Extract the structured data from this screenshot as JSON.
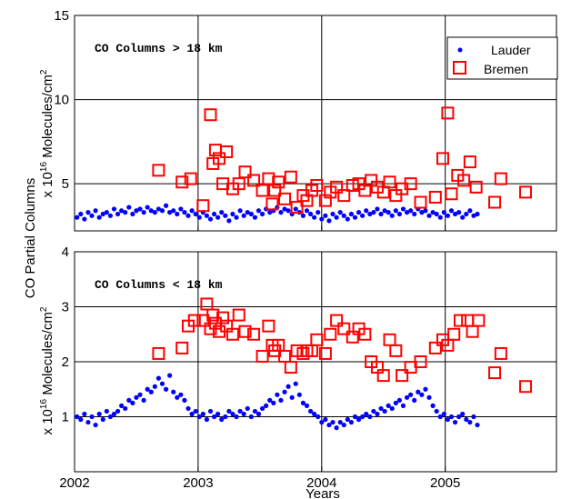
{
  "chart_data": {
    "type": "scatter",
    "xlabel": "Years",
    "ylabel_main": "CO Partial Columns",
    "ylabel_units_prefix": "x 10",
    "ylabel_units_exp": "16",
    "ylabel_units_suffix": " Molecules/cm",
    "ylabel_units_sup2": "2",
    "xlim": [
      2002.0,
      2005.9
    ],
    "xticks": [
      2002,
      2003,
      2004,
      2005
    ],
    "xtick_labels": [
      "2002",
      "2003",
      "2004",
      "2005"
    ],
    "legend": {
      "placement": "top-right",
      "entries": [
        "Lauder",
        "Bremen"
      ]
    },
    "colors": {
      "lauder": "#0000ff",
      "bremen": "#ff0000"
    },
    "grid": true,
    "panels": [
      {
        "annotation": "CO Columns > 18 km",
        "ylim": [
          2.2,
          15
        ],
        "yticks": [
          5,
          10,
          15
        ],
        "ytick_labels": [
          "5",
          "10",
          "15"
        ],
        "series": [
          {
            "name": "Lauder",
            "marker": "dot",
            "x": [
              2002.02,
              2002.05,
              2002.08,
              2002.11,
              2002.14,
              2002.17,
              2002.2,
              2002.23,
              2002.26,
              2002.29,
              2002.32,
              2002.35,
              2002.38,
              2002.41,
              2002.44,
              2002.47,
              2002.5,
              2002.53,
              2002.56,
              2002.59,
              2002.62,
              2002.65,
              2002.68,
              2002.71,
              2002.74,
              2002.77,
              2002.8,
              2002.83,
              2002.86,
              2002.89,
              2002.92,
              2002.95,
              2002.98,
              2003.01,
              2003.04,
              2003.07,
              2003.1,
              2003.13,
              2003.16,
              2003.19,
              2003.22,
              2003.25,
              2003.28,
              2003.31,
              2003.34,
              2003.37,
              2003.4,
              2003.43,
              2003.46,
              2003.49,
              2003.52,
              2003.55,
              2003.58,
              2003.61,
              2003.64,
              2003.67,
              2003.7,
              2003.73,
              2003.76,
              2003.79,
              2003.82,
              2003.85,
              2003.88,
              2003.91,
              2003.94,
              2003.97,
              2004.0,
              2004.03,
              2004.06,
              2004.09,
              2004.12,
              2004.15,
              2004.18,
              2004.21,
              2004.24,
              2004.27,
              2004.3,
              2004.33,
              2004.36,
              2004.39,
              2004.42,
              2004.45,
              2004.48,
              2004.51,
              2004.54,
              2004.57,
              2004.6,
              2004.63,
              2004.66,
              2004.69,
              2004.72,
              2004.75,
              2004.78,
              2004.81,
              2004.84,
              2004.87,
              2004.9,
              2004.93,
              2004.96,
              2004.99,
              2005.02,
              2005.05,
              2005.08,
              2005.11,
              2005.14,
              2005.17,
              2005.2,
              2005.23,
              2005.26
            ],
            "y": [
              3.0,
              3.2,
              2.9,
              3.3,
              3.1,
              3.4,
              3.0,
              3.2,
              3.3,
              3.1,
              3.5,
              3.2,
              3.4,
              3.3,
              3.6,
              3.2,
              3.4,
              3.5,
              3.3,
              3.6,
              3.4,
              3.3,
              3.5,
              3.4,
              3.7,
              3.3,
              3.4,
              3.2,
              3.5,
              3.3,
              3.1,
              3.4,
              3.2,
              3.0,
              3.3,
              3.1,
              2.9,
              3.2,
              3.0,
              3.3,
              3.1,
              2.8,
              3.2,
              3.0,
              3.4,
              3.1,
              3.3,
              3.2,
              3.0,
              3.4,
              3.2,
              3.5,
              3.3,
              3.4,
              3.6,
              3.3,
              3.5,
              3.4,
              3.2,
              3.5,
              3.3,
              3.1,
              3.4,
              3.2,
              3.0,
              3.3,
              2.9,
              3.1,
              2.8,
              3.2,
              3.0,
              3.3,
              3.1,
              2.9,
              3.2,
              3.0,
              3.3,
              3.1,
              3.4,
              3.2,
              3.3,
              3.5,
              3.2,
              3.4,
              3.3,
              3.1,
              3.4,
              3.2,
              3.5,
              3.3,
              3.4,
              3.2,
              3.5,
              3.3,
              3.4,
              3.1,
              3.3,
              3.2,
              3.0,
              3.3,
              3.1,
              3.4,
              3.2,
              3.3,
              3.0,
              3.2,
              3.4,
              3.1,
              3.2
            ]
          },
          {
            "name": "Bremen",
            "marker": "square",
            "x": [
              2002.68,
              2002.87,
              2002.94,
              2003.04,
              2003.1,
              2003.12,
              2003.14,
              2003.17,
              2003.2,
              2003.23,
              2003.28,
              2003.33,
              2003.38,
              2003.45,
              2003.52,
              2003.57,
              2003.6,
              2003.62,
              2003.65,
              2003.7,
              2003.75,
              2003.8,
              2003.85,
              2003.88,
              2003.92,
              2003.96,
              2004.03,
              2004.07,
              2004.12,
              2004.18,
              2004.25,
              2004.3,
              2004.35,
              2004.4,
              2004.45,
              2004.5,
              2004.55,
              2004.6,
              2004.65,
              2004.72,
              2004.8,
              2004.92,
              2004.98,
              2005.02,
              2005.05,
              2005.1,
              2005.15,
              2005.2,
              2005.25,
              2005.4,
              2005.45,
              2005.65
            ],
            "y": [
              5.8,
              5.1,
              5.3,
              3.7,
              9.1,
              6.2,
              7.0,
              6.5,
              5.0,
              6.9,
              4.7,
              5.0,
              5.7,
              5.2,
              4.6,
              5.3,
              3.8,
              4.6,
              5.1,
              4.1,
              5.4,
              3.6,
              4.3,
              4.0,
              4.6,
              4.9,
              4.0,
              4.5,
              4.8,
              4.3,
              4.9,
              5.0,
              4.6,
              5.2,
              4.8,
              4.5,
              5.1,
              4.3,
              4.7,
              5.0,
              3.9,
              4.2,
              6.5,
              9.2,
              4.4,
              5.5,
              5.2,
              6.3,
              4.8,
              3.9,
              5.3,
              4.5
            ]
          }
        ]
      },
      {
        "annotation": "CO Columns < 18 km",
        "ylim": [
          0,
          4
        ],
        "yticks": [
          1,
          2,
          3,
          4
        ],
        "ytick_labels": [
          "1",
          "2",
          "3",
          "4"
        ],
        "series": [
          {
            "name": "Lauder",
            "marker": "dot",
            "x": [
              2002.02,
              2002.05,
              2002.08,
              2002.11,
              2002.14,
              2002.17,
              2002.2,
              2002.23,
              2002.26,
              2002.29,
              2002.32,
              2002.35,
              2002.38,
              2002.41,
              2002.44,
              2002.47,
              2002.5,
              2002.53,
              2002.56,
              2002.59,
              2002.62,
              2002.65,
              2002.68,
              2002.71,
              2002.74,
              2002.77,
              2002.8,
              2002.83,
              2002.86,
              2002.89,
              2002.92,
              2002.95,
              2002.98,
              2003.01,
              2003.04,
              2003.07,
              2003.1,
              2003.13,
              2003.16,
              2003.19,
              2003.22,
              2003.25,
              2003.28,
              2003.31,
              2003.34,
              2003.37,
              2003.4,
              2003.43,
              2003.46,
              2003.49,
              2003.52,
              2003.55,
              2003.58,
              2003.61,
              2003.64,
              2003.67,
              2003.7,
              2003.73,
              2003.76,
              2003.79,
              2003.82,
              2003.85,
              2003.88,
              2003.91,
              2003.94,
              2003.97,
              2004.0,
              2004.03,
              2004.06,
              2004.09,
              2004.12,
              2004.15,
              2004.18,
              2004.21,
              2004.24,
              2004.27,
              2004.3,
              2004.33,
              2004.36,
              2004.39,
              2004.42,
              2004.45,
              2004.48,
              2004.51,
              2004.54,
              2004.57,
              2004.6,
              2004.63,
              2004.66,
              2004.69,
              2004.72,
              2004.75,
              2004.78,
              2004.81,
              2004.84,
              2004.87,
              2004.9,
              2004.93,
              2004.96,
              2004.99,
              2005.02,
              2005.05,
              2005.08,
              2005.11,
              2005.14,
              2005.17,
              2005.2,
              2005.23,
              2005.26
            ],
            "y": [
              1.0,
              0.95,
              1.05,
              0.9,
              1.0,
              0.85,
              1.05,
              0.95,
              1.1,
              1.0,
              1.05,
              1.1,
              1.2,
              1.15,
              1.3,
              1.25,
              1.35,
              1.4,
              1.3,
              1.5,
              1.45,
              1.55,
              1.7,
              1.6,
              1.5,
              1.75,
              1.45,
              1.35,
              1.4,
              1.3,
              1.15,
              1.05,
              1.1,
              1.0,
              1.05,
              0.95,
              1.1,
              1.0,
              1.05,
              0.95,
              1.0,
              1.1,
              1.05,
              1.0,
              1.1,
              1.05,
              1.15,
              1.0,
              1.1,
              1.05,
              1.15,
              1.2,
              1.3,
              1.25,
              1.4,
              1.3,
              1.45,
              1.55,
              1.35,
              1.6,
              1.4,
              1.25,
              1.2,
              1.1,
              1.05,
              1.0,
              0.9,
              0.95,
              0.85,
              0.9,
              0.8,
              0.9,
              0.85,
              0.95,
              0.9,
              1.0,
              0.95,
              1.0,
              1.05,
              1.0,
              1.1,
              1.05,
              1.15,
              1.1,
              1.2,
              1.15,
              1.25,
              1.3,
              1.2,
              1.35,
              1.4,
              1.3,
              1.45,
              1.4,
              1.5,
              1.35,
              1.2,
              1.1,
              1.0,
              1.05,
              0.95,
              1.0,
              0.9,
              1.0,
              1.05,
              0.95,
              0.9,
              1.0,
              0.85
            ]
          },
          {
            "name": "Bremen",
            "marker": "square",
            "x": [
              2002.68,
              2002.87,
              2002.92,
              2002.97,
              2003.04,
              2003.07,
              2003.1,
              2003.12,
              2003.14,
              2003.17,
              2003.2,
              2003.23,
              2003.28,
              2003.33,
              2003.38,
              2003.45,
              2003.52,
              2003.57,
              2003.6,
              2003.62,
              2003.65,
              2003.7,
              2003.75,
              2003.8,
              2003.85,
              2003.88,
              2003.92,
              2003.96,
              2004.03,
              2004.07,
              2004.12,
              2004.18,
              2004.25,
              2004.3,
              2004.35,
              2004.4,
              2004.45,
              2004.5,
              2004.55,
              2004.6,
              2004.65,
              2004.72,
              2004.8,
              2004.92,
              2004.98,
              2005.02,
              2005.07,
              2005.12,
              2005.18,
              2005.22,
              2005.27,
              2005.4,
              2005.45,
              2005.65
            ],
            "y": [
              2.15,
              2.25,
              2.65,
              2.75,
              2.75,
              3.05,
              2.6,
              2.85,
              2.7,
              2.55,
              2.8,
              2.65,
              2.5,
              2.85,
              2.55,
              2.5,
              2.1,
              2.65,
              2.3,
              2.2,
              2.3,
              2.1,
              1.9,
              2.2,
              2.15,
              2.2,
              2.2,
              2.4,
              2.15,
              2.5,
              2.75,
              2.6,
              2.45,
              2.6,
              2.5,
              2.0,
              1.9,
              1.75,
              2.4,
              2.2,
              1.75,
              1.9,
              2.0,
              2.25,
              2.4,
              2.3,
              2.5,
              2.75,
              2.75,
              2.55,
              2.75,
              1.8,
              2.15,
              1.55
            ]
          }
        ]
      }
    ]
  }
}
